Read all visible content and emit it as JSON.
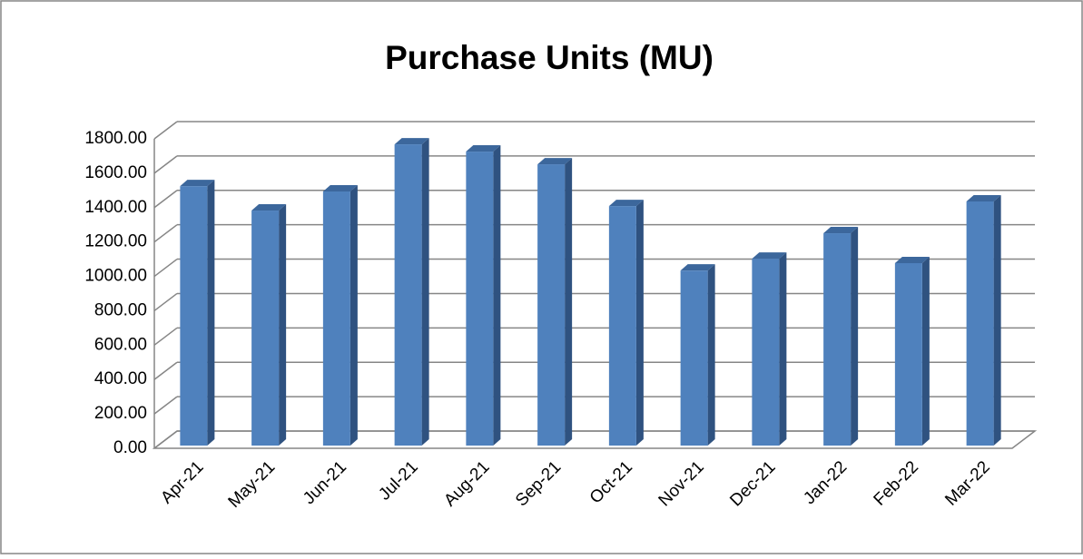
{
  "chart_data": {
    "type": "bar",
    "title": "Purchase Units (MU)",
    "categories": [
      "Apr-21",
      "May-21",
      "Jun-21",
      "Jul-21",
      "Aug-21",
      "Sep-21",
      "Oct-21",
      "Nov-21",
      "Dec-21",
      "Jan-22",
      "Feb-22",
      "Mar-22"
    ],
    "values": [
      1509,
      1367,
      1478,
      1752,
      1710,
      1636,
      1393,
      1018,
      1087,
      1235,
      1061,
      1420
    ],
    "color": "#4f81bd",
    "ylim": [
      0,
      1800
    ],
    "yticks": [
      {
        "value": 0,
        "label": "0.00"
      },
      {
        "value": 200,
        "label": "200.00"
      },
      {
        "value": 400,
        "label": "400.00"
      },
      {
        "value": 600,
        "label": "600.00"
      },
      {
        "value": 800,
        "label": "800.00"
      },
      {
        "value": 1000,
        "label": "1000.00"
      },
      {
        "value": 1200,
        "label": "1200.00"
      },
      {
        "value": 1400,
        "label": "1400.00"
      },
      {
        "value": 1600,
        "label": "1600.00"
      },
      {
        "value": 1800,
        "label": "1800.00"
      }
    ],
    "grid": true
  }
}
